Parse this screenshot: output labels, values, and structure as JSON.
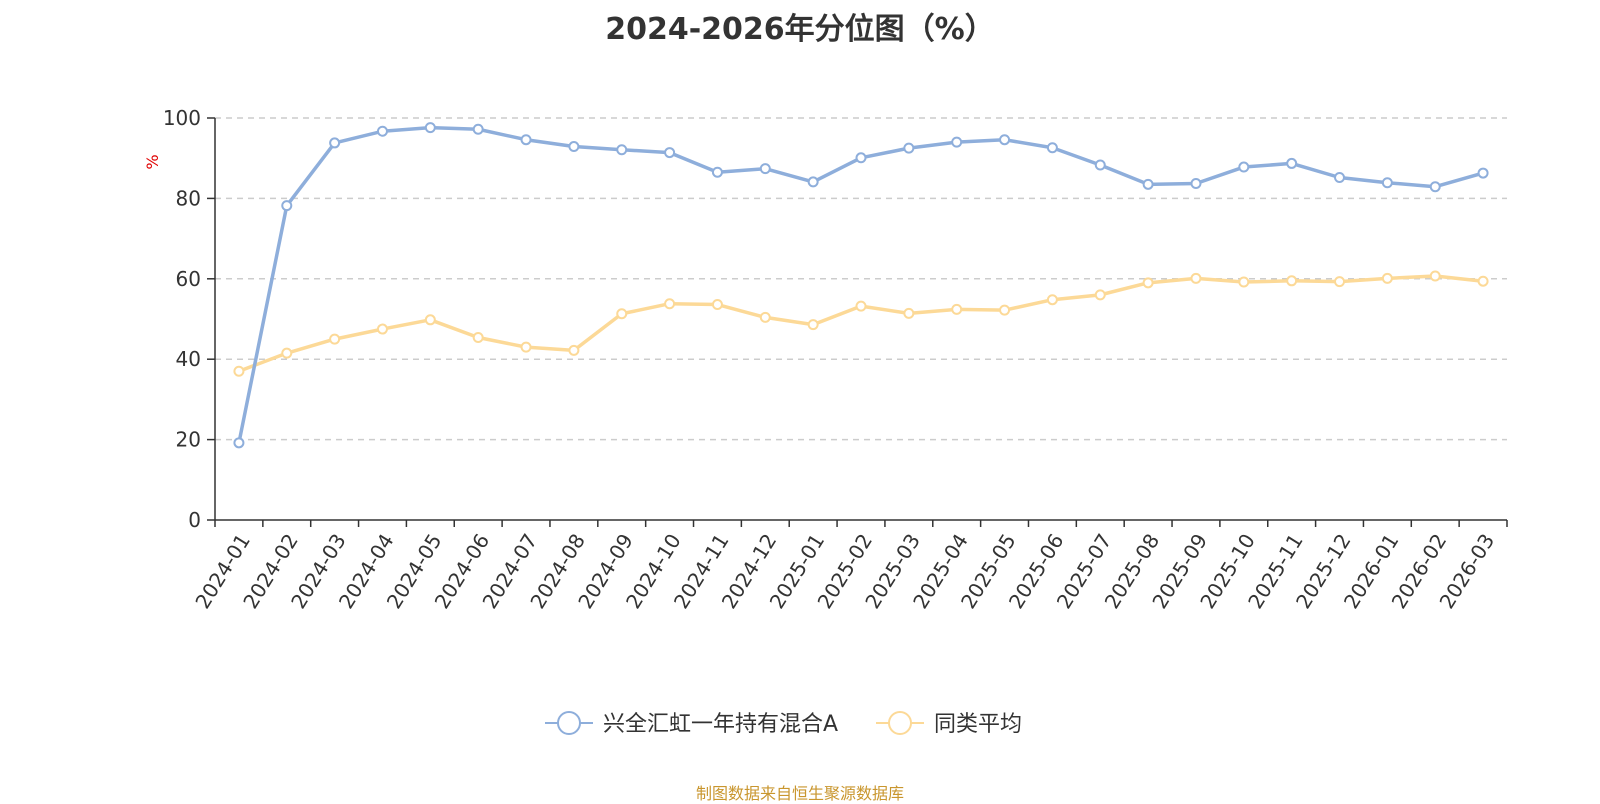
{
  "chart_data": {
    "type": "line",
    "title": "2024-2026年分位图（%）",
    "ylabel": "%",
    "xlabel": "",
    "ylim": [
      0,
      100
    ],
    "yticks": [
      0,
      20,
      40,
      60,
      80,
      100
    ],
    "grid": true,
    "legend_position": "bottom-center",
    "categories": [
      "2024-01",
      "2024-02",
      "2024-03",
      "2024-04",
      "2024-05",
      "2024-06",
      "2024-07",
      "2024-08",
      "2024-09",
      "2024-10",
      "2024-11",
      "2024-12",
      "2025-01",
      "2025-02",
      "2025-03",
      "2025-04",
      "2025-05",
      "2025-06",
      "2025-07",
      "2025-08",
      "2025-09",
      "2025-10",
      "2025-11",
      "2025-12",
      "2026-01",
      "2026-02",
      "2026-03"
    ],
    "series": [
      {
        "name": "兴全汇虹一年持有混合A",
        "color": "#8eaedb",
        "values": [
          19.2,
          78.2,
          93.8,
          96.7,
          97.6,
          97.2,
          94.6,
          92.9,
          92.1,
          91.4,
          86.5,
          87.4,
          84.1,
          90.1,
          92.5,
          94.0,
          94.6,
          92.6,
          88.3,
          83.5,
          83.7,
          87.8,
          88.7,
          85.2,
          83.9,
          82.9,
          86.3
        ]
      },
      {
        "name": "同类平均",
        "color": "#fcd997",
        "values": [
          37.0,
          41.5,
          45.0,
          47.5,
          49.8,
          45.4,
          43.0,
          42.2,
          51.3,
          53.8,
          53.6,
          50.4,
          48.6,
          53.2,
          51.4,
          52.4,
          52.2,
          54.8,
          56.0,
          59.0,
          60.1,
          59.2,
          59.5,
          59.3,
          60.1,
          60.7,
          59.4
        ]
      }
    ]
  },
  "source_note": "制图数据来自恒生聚源数据库"
}
